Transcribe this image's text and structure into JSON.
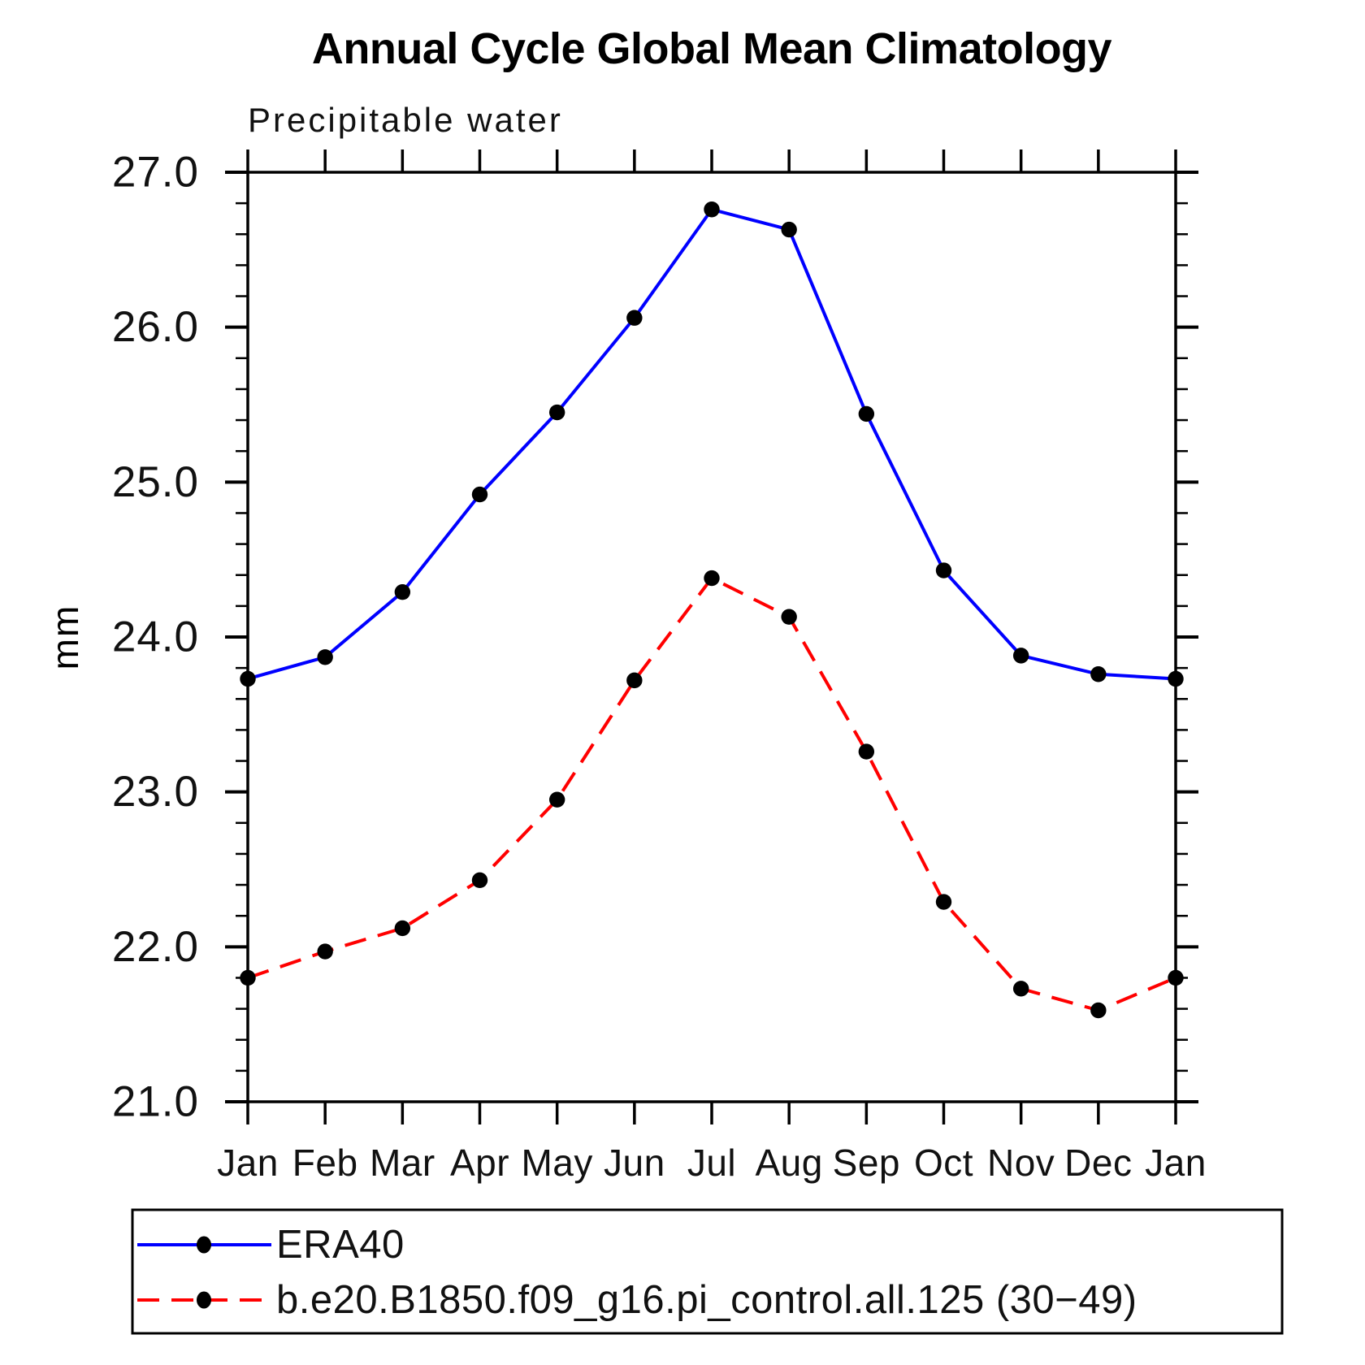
{
  "title": "Annual Cycle Global Mean Climatology",
  "subtitle": "Precipitable water",
  "chart_data": {
    "type": "line",
    "title": "Annual Cycle Global Mean Climatology",
    "subtitle": "Precipitable water",
    "xlabel": "",
    "ylabel": "mm",
    "categories": [
      "Jan",
      "Feb",
      "Mar",
      "Apr",
      "May",
      "Jun",
      "Jul",
      "Aug",
      "Sep",
      "Oct",
      "Nov",
      "Dec",
      "Jan"
    ],
    "ylim": [
      21.0,
      27.0
    ],
    "ytick_interval": 1.0,
    "yminor_interval": 0.2,
    "ytick_labels": [
      "21.0",
      "22.0",
      "23.0",
      "24.0",
      "25.0",
      "26.0",
      "27.0"
    ],
    "grid": false,
    "legend_position": "bottom",
    "axis_color": "#000000",
    "series": [
      {
        "name": "ERA40",
        "color": "#0000ff",
        "style": "solid",
        "marker": "filled-circle",
        "marker_color": "#000000",
        "values": [
          23.73,
          23.87,
          24.29,
          24.92,
          25.45,
          26.06,
          26.76,
          26.63,
          25.44,
          24.43,
          23.88,
          23.76,
          23.73
        ]
      },
      {
        "name": "b.e20.B1850.f09_g16.pi_control.all.125 (30−49)",
        "color": "#ff0000",
        "style": "dashed",
        "marker": "filled-circle",
        "marker_color": "#000000",
        "values": [
          21.8,
          21.97,
          22.12,
          22.43,
          22.95,
          23.72,
          24.38,
          24.13,
          23.26,
          22.29,
          21.73,
          21.59,
          21.8
        ]
      }
    ]
  }
}
